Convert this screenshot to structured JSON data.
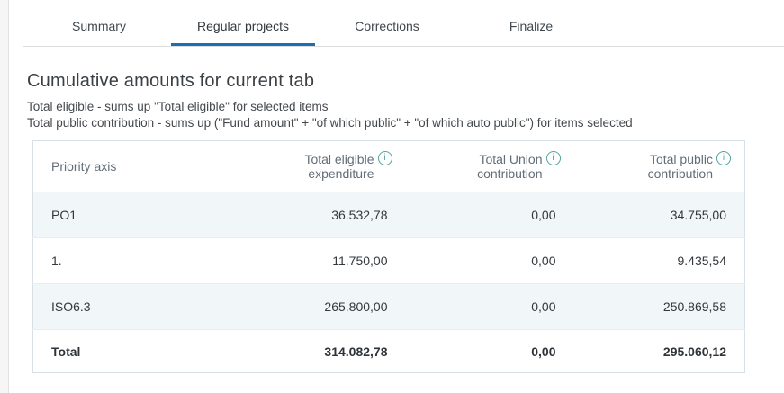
{
  "tabs": {
    "items": [
      {
        "label": "Summary",
        "active": false
      },
      {
        "label": "Regular projects",
        "active": true
      },
      {
        "label": "Corrections",
        "active": false
      },
      {
        "label": "Finalize",
        "active": false
      }
    ]
  },
  "section": {
    "title": "Cumulative amounts for current tab",
    "notes": [
      "Total eligible - sums up \"Total eligible\" for selected items",
      "Total public contribution - sums up (\"Fund amount\" + \"of which public\" + \"of which auto public\") for items selected"
    ]
  },
  "table": {
    "columns": [
      {
        "label": "Priority axis",
        "info": false
      },
      {
        "label": "Total eligible expenditure",
        "info": true
      },
      {
        "label": "Total Union contribution",
        "info": true
      },
      {
        "label": "Total public contribution",
        "info": true
      }
    ],
    "rows": [
      {
        "axis": "PO1",
        "eligible": "36.532,78",
        "union": "0,00",
        "public": "34.755,00"
      },
      {
        "axis": "1.",
        "eligible": "11.750,00",
        "union": "0,00",
        "public": "9.435,54"
      },
      {
        "axis": "ISO6.3",
        "eligible": "265.800,00",
        "union": "0,00",
        "public": "250.869,58"
      }
    ],
    "total_row": {
      "axis": "Total",
      "eligible": "314.082,78",
      "union": "0,00",
      "public": "295.060,12"
    }
  },
  "icons": {
    "info": "i"
  },
  "colors": {
    "accent_blue": "#1b6fb5",
    "info_icon_teal": "#54a39c",
    "row_stripe": "#f1f6f9",
    "table_border": "#d9e0e5",
    "header_text": "#626d77",
    "body_text": "#33383d"
  }
}
